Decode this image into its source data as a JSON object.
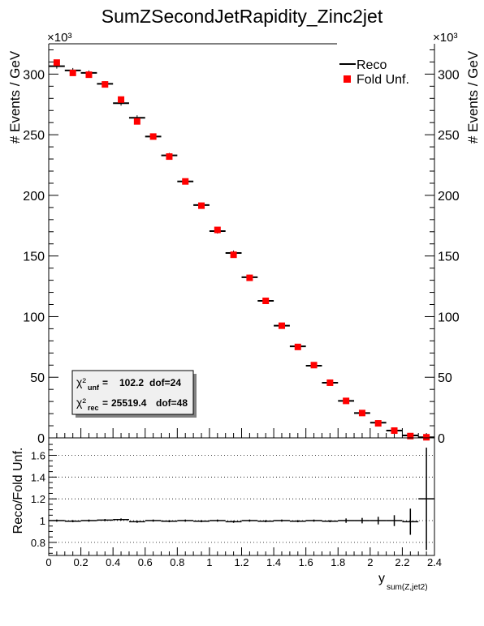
{
  "chart_data": [
    {
      "type": "scatter",
      "title": "SumZSecondJetRapidity_Zinc2jet",
      "ylabel": "# Events / GeV",
      "y_multiplier": "×10³",
      "xlim": [
        0,
        2.4
      ],
      "ylim": [
        0,
        325
      ],
      "yticks": [
        0,
        50,
        100,
        150,
        200,
        250,
        300
      ],
      "grid": false,
      "legend_position": "top-right",
      "legend": [
        "Reco",
        "Fold Unf."
      ],
      "chi2_box": {
        "unf_label": "χ²",
        "unf_sub": "unf",
        "unf_value": "102.2",
        "unf_dof": "dof=24",
        "rec_label": "χ²",
        "rec_sub": "rec",
        "rec_value": "25519.4",
        "rec_dof": "dof=48"
      },
      "series": [
        {
          "name": "Reco",
          "style": "black horizontal bin markers",
          "color": "#000000",
          "x": [
            0.05,
            0.15,
            0.25,
            0.35,
            0.45,
            0.55,
            0.65,
            0.75,
            0.85,
            0.95,
            1.05,
            1.15,
            1.25,
            1.35,
            1.45,
            1.55,
            1.65,
            1.75,
            1.85,
            1.95,
            2.05,
            2.15,
            2.25,
            2.35
          ],
          "values": [
            306.5,
            303,
            301,
            292,
            276,
            264,
            248.5,
            233,
            211.5,
            192,
            170.5,
            152.5,
            132.5,
            113,
            92.5,
            75.5,
            59.5,
            45.5,
            30.5,
            20.5,
            12.5,
            6,
            2,
            0.5
          ]
        },
        {
          "name": "Fold Unf.",
          "style": "red square markers",
          "color": "#ff0000",
          "x": [
            0.05,
            0.15,
            0.25,
            0.35,
            0.45,
            0.55,
            0.65,
            0.75,
            0.85,
            0.95,
            1.05,
            1.15,
            1.25,
            1.35,
            1.45,
            1.55,
            1.65,
            1.75,
            1.85,
            1.95,
            2.05,
            2.15,
            2.25,
            2.35
          ],
          "values": [
            309.5,
            301,
            299.5,
            291.5,
            279,
            261,
            248.5,
            232,
            211.5,
            191.5,
            171.5,
            151,
            132,
            113,
            92.5,
            75,
            60,
            45.5,
            30.5,
            20.5,
            12,
            6,
            1.5,
            0.5
          ]
        }
      ]
    },
    {
      "type": "scatter",
      "ylabel": "Reco/Fold Unf.",
      "xlabel": "y",
      "xlabel_sub": "sum(Z,jet2)",
      "xlim": [
        0,
        2.4
      ],
      "ylim": [
        0.68,
        1.76
      ],
      "xticks": [
        "0",
        "0.2",
        "0.4",
        "0.6",
        "0.8",
        "1",
        "1.2",
        "1.4",
        "1.6",
        "1.8",
        "2",
        "2.2",
        "2.4"
      ],
      "yticks": [
        "0.8",
        "1",
        "1.2",
        "1.4",
        "1.6"
      ],
      "grid": "dotted horizontal lines at y ticks",
      "series": [
        {
          "name": "",
          "color": "#000000",
          "x": [
            0.05,
            0.15,
            0.25,
            0.35,
            0.45,
            0.55,
            0.65,
            0.75,
            0.85,
            0.95,
            1.05,
            1.15,
            1.25,
            1.35,
            1.45,
            1.55,
            1.65,
            1.75,
            1.85,
            1.95,
            2.05,
            2.15,
            2.25,
            2.35
          ],
          "values": [
            1.0,
            0.995,
            1.0,
            1.005,
            1.01,
            0.99,
            1.0,
            0.995,
            1.0,
            0.995,
            1.0,
            0.99,
            1.0,
            0.995,
            1.0,
            0.995,
            1.0,
            0.995,
            1.0,
            1.0,
            1.0,
            1.0,
            0.99,
            1.2
          ],
          "errors": [
            0.01,
            0.01,
            0.01,
            0.01,
            0.01,
            0.01,
            0.01,
            0.01,
            0.01,
            0.01,
            0.01,
            0.01,
            0.01,
            0.01,
            0.01,
            0.01,
            0.01,
            0.01,
            0.02,
            0.025,
            0.035,
            0.05,
            0.12,
            0.47
          ]
        }
      ]
    }
  ]
}
